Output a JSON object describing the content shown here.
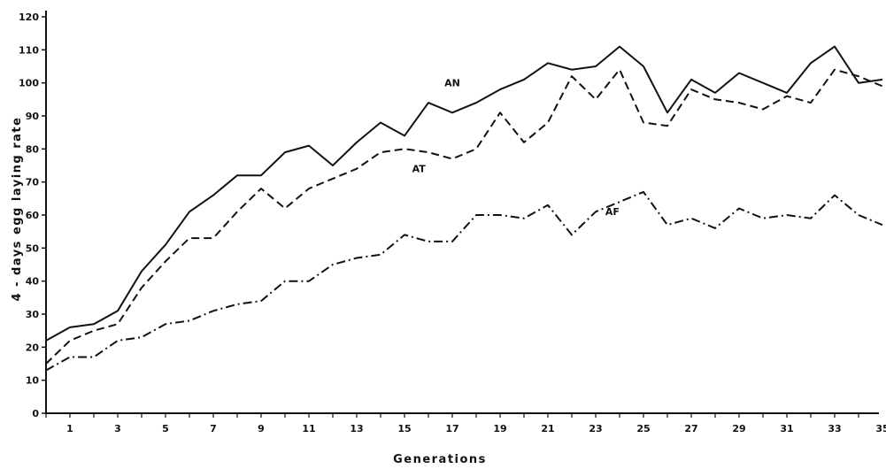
{
  "chart_data": {
    "type": "line",
    "xlabel": "Generations",
    "ylabel": "4 - days egg laying rate",
    "xlim": [
      0,
      36
    ],
    "ylim": [
      0,
      120
    ],
    "xticks": [
      1,
      3,
      5,
      7,
      9,
      11,
      13,
      15,
      17,
      19,
      21,
      23,
      25,
      27,
      29,
      31,
      33,
      35
    ],
    "yticks": [
      0,
      10,
      20,
      30,
      40,
      50,
      60,
      70,
      80,
      90,
      100,
      110,
      120
    ],
    "x": [
      0,
      1,
      2,
      3,
      4,
      5,
      6,
      7,
      8,
      9,
      10,
      11,
      12,
      13,
      14,
      15,
      16,
      17,
      18,
      19,
      20,
      21,
      22,
      23,
      24,
      25,
      26,
      27,
      28,
      29,
      30,
      31,
      32,
      33,
      34,
      35
    ],
    "series": [
      {
        "name": "AN",
        "style": "solid",
        "values": [
          22,
          26,
          27,
          31,
          43,
          51,
          61,
          66,
          72,
          72,
          79,
          81,
          75,
          82,
          88,
          84,
          94,
          91,
          94,
          98,
          101,
          106,
          104,
          105,
          111,
          105,
          91,
          101,
          97,
          103,
          100,
          97,
          106,
          111,
          100,
          101
        ]
      },
      {
        "name": "AT",
        "style": "dashed",
        "values": [
          15,
          22,
          25,
          27,
          38,
          46,
          53,
          53,
          61,
          68,
          62,
          68,
          71,
          74,
          79,
          80,
          79,
          77,
          80,
          91,
          82,
          88,
          102,
          95,
          104,
          88,
          87,
          98,
          95,
          94,
          92,
          96,
          94,
          104,
          102,
          99
        ]
      },
      {
        "name": "AF",
        "style": "dashdot",
        "values": [
          13,
          17,
          17,
          22,
          23,
          27,
          28,
          31,
          33,
          34,
          40,
          40,
          45,
          47,
          48,
          54,
          52,
          52,
          60,
          60,
          59,
          63,
          54,
          61,
          64,
          67,
          57,
          59,
          56,
          62,
          59,
          60,
          59,
          66,
          60,
          57
        ]
      }
    ]
  }
}
